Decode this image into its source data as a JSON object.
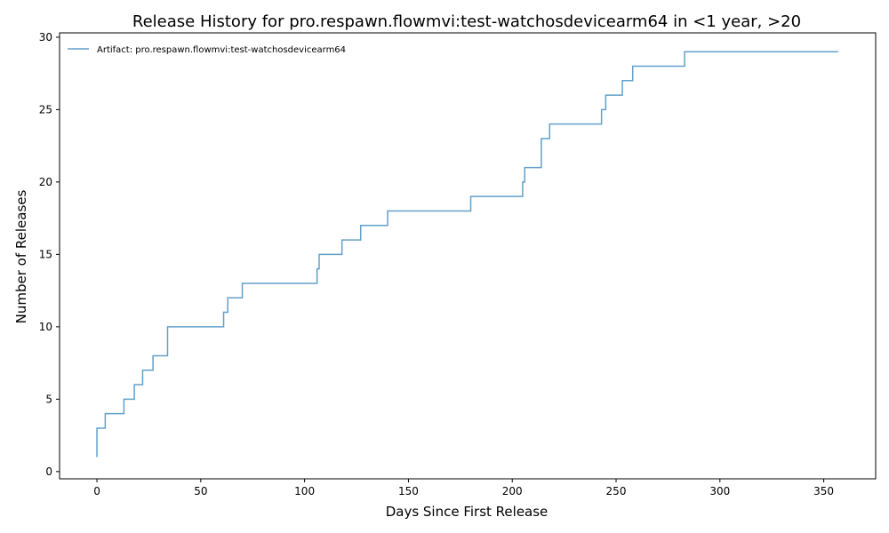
{
  "chart_data": {
    "type": "line",
    "drawstyle": "steps-post",
    "title": "Release History for pro.respawn.flowmvi:test-watchosdevicearm64 in <1 year, >20",
    "xlabel": "Days Since First Release",
    "ylabel": "Number of Releases",
    "xlim": [
      -18,
      375
    ],
    "ylim": [
      -0.5,
      30.3
    ],
    "xticks": [
      0,
      50,
      100,
      150,
      200,
      250,
      300,
      350
    ],
    "yticks": [
      0,
      5,
      10,
      15,
      20,
      25,
      30
    ],
    "grid": false,
    "legend_position": "top-left",
    "series": [
      {
        "name": "Artifact: pro.respawn.flowmvi:test-watchosdevicearm64",
        "color": "#1f77b4",
        "x": [
          0,
          0,
          4,
          13,
          18,
          22,
          27,
          34,
          61,
          63,
          70,
          106,
          107,
          118,
          127,
          140,
          180,
          205,
          206,
          214,
          218,
          243,
          245,
          253,
          258,
          283,
          357
        ],
        "y": [
          1,
          3,
          4,
          5,
          6,
          7,
          8,
          10,
          11,
          12,
          13,
          14,
          15,
          16,
          17,
          18,
          19,
          20,
          21,
          23,
          24,
          25,
          26,
          27,
          28,
          29,
          29
        ]
      }
    ]
  }
}
